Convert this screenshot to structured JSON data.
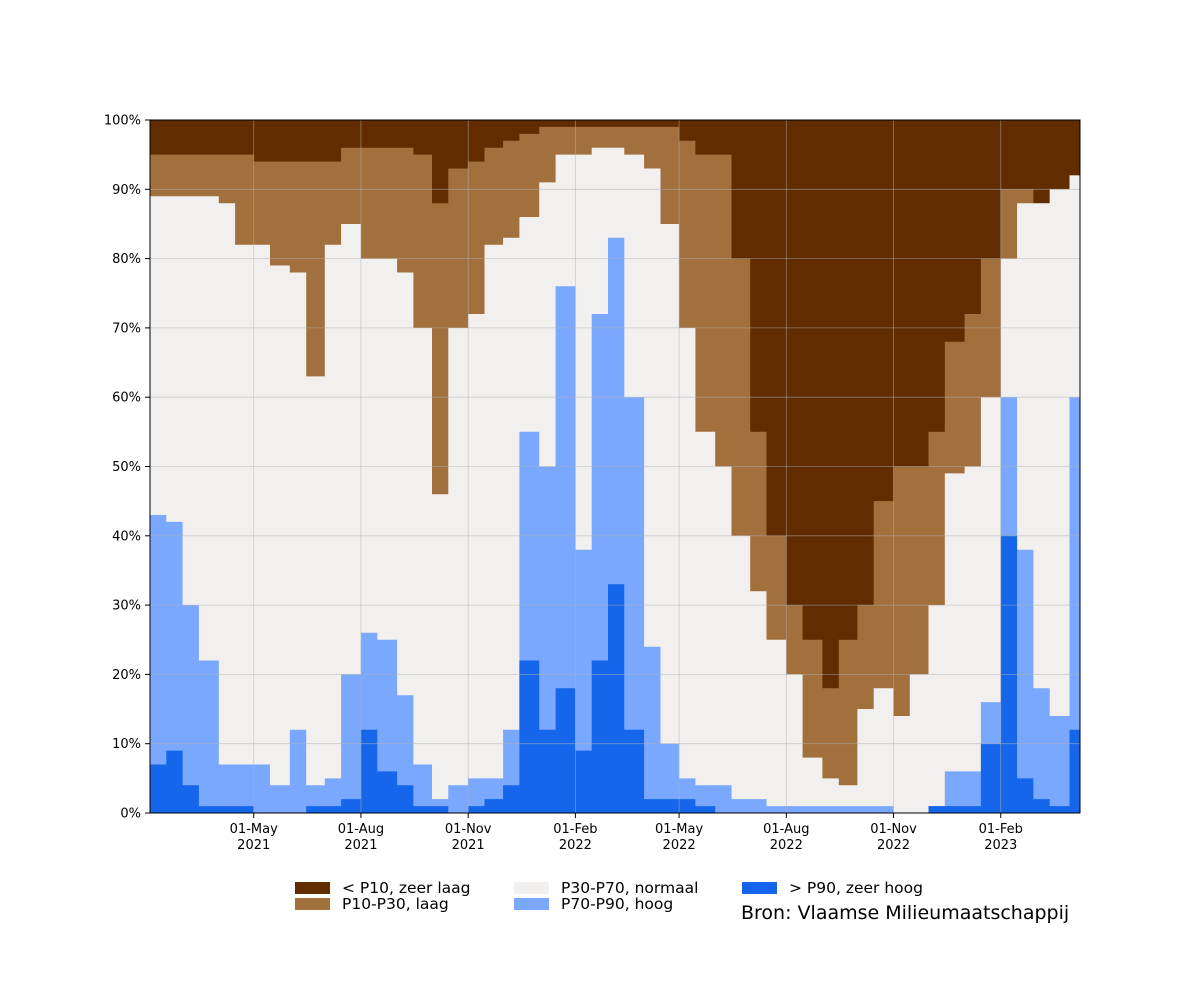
{
  "chart_data": {
    "type": "area",
    "stacked": true,
    "grid": true,
    "legend_position": "bottom",
    "y_unit": "%",
    "ylim": [
      0,
      100
    ],
    "yticks": [
      0,
      10,
      20,
      30,
      40,
      50,
      60,
      70,
      80,
      90,
      100
    ],
    "ytick_labels": [
      "0%",
      "10%",
      "20%",
      "30%",
      "40%",
      "50%",
      "60%",
      "70%",
      "80%",
      "90%",
      "100%"
    ],
    "xlim": [
      "2021-02-01",
      "2023-04-10"
    ],
    "xticks": [
      {
        "date": "2021-05-01",
        "label1": "01-May",
        "label2": "2021"
      },
      {
        "date": "2021-08-01",
        "label1": "01-Aug",
        "label2": "2021"
      },
      {
        "date": "2021-11-01",
        "label1": "01-Nov",
        "label2": "2021"
      },
      {
        "date": "2022-02-01",
        "label1": "01-Feb",
        "label2": "2022"
      },
      {
        "date": "2022-05-01",
        "label1": "01-May",
        "label2": "2022"
      },
      {
        "date": "2022-08-01",
        "label1": "01-Aug",
        "label2": "2022"
      },
      {
        "date": "2022-11-01",
        "label1": "01-Nov",
        "label2": "2022"
      },
      {
        "date": "2023-02-01",
        "label1": "01-Feb",
        "label2": "2023"
      }
    ],
    "x": [
      "2021-02-01",
      "2021-02-15",
      "2021-03-01",
      "2021-03-15",
      "2021-04-01",
      "2021-04-15",
      "2021-05-01",
      "2021-05-15",
      "2021-06-01",
      "2021-06-15",
      "2021-07-01",
      "2021-07-15",
      "2021-08-01",
      "2021-08-15",
      "2021-09-01",
      "2021-09-15",
      "2021-10-01",
      "2021-10-15",
      "2021-11-01",
      "2021-11-15",
      "2021-12-01",
      "2021-12-15",
      "2022-01-01",
      "2022-01-15",
      "2022-02-01",
      "2022-02-15",
      "2022-03-01",
      "2022-03-15",
      "2022-04-01",
      "2022-04-15",
      "2022-05-01",
      "2022-05-15",
      "2022-06-01",
      "2022-06-15",
      "2022-07-01",
      "2022-07-15",
      "2022-08-01",
      "2022-08-15",
      "2022-09-01",
      "2022-09-15",
      "2022-10-01",
      "2022-10-15",
      "2022-11-01",
      "2022-11-15",
      "2022-12-01",
      "2022-12-15",
      "2023-01-01",
      "2023-01-15",
      "2023-02-01",
      "2023-02-15",
      "2023-03-01",
      "2023-03-15",
      "2023-04-01",
      "2023-04-10"
    ],
    "series": [
      {
        "name": "> P90, zeer hoog",
        "color": "#1566eb",
        "values": [
          7,
          9,
          4,
          1,
          1,
          1,
          0,
          0,
          0,
          1,
          1,
          2,
          12,
          6,
          4,
          1,
          1,
          0,
          1,
          2,
          4,
          22,
          12,
          18,
          9,
          22,
          33,
          12,
          2,
          2,
          2,
          1,
          0,
          0,
          0,
          0,
          0,
          0,
          0,
          0,
          0,
          0,
          0,
          0,
          1,
          1,
          1,
          10,
          40,
          5,
          2,
          1,
          12,
          25
        ]
      },
      {
        "name": "P70-P90, hoog",
        "color": "#7aa8ff",
        "values": [
          43,
          42,
          30,
          22,
          7,
          7,
          7,
          4,
          12,
          4,
          5,
          20,
          26,
          25,
          17,
          7,
          2,
          4,
          5,
          5,
          12,
          55,
          50,
          76,
          38,
          72,
          83,
          60,
          24,
          10,
          5,
          4,
          4,
          2,
          2,
          1,
          1,
          1,
          1,
          1,
          1,
          1,
          0,
          0,
          1,
          6,
          6,
          16,
          60,
          38,
          18,
          14,
          60,
          70
        ]
      },
      {
        "name": "P30-P70, normaal",
        "color": "#f2f0ef",
        "values": [
          89,
          89,
          89,
          89,
          88,
          82,
          82,
          79,
          78,
          63,
          82,
          85,
          80,
          80,
          78,
          70,
          46,
          70,
          72,
          82,
          83,
          86,
          91,
          95,
          95,
          96,
          96,
          95,
          93,
          85,
          70,
          55,
          50,
          40,
          32,
          25,
          20,
          8,
          5,
          4,
          15,
          18,
          14,
          20,
          30,
          49,
          50,
          60,
          80,
          88,
          88,
          90,
          92,
          94
        ]
      },
      {
        "name": "P10-P30, laag",
        "color": "#a2703c",
        "values": [
          95,
          95,
          95,
          95,
          95,
          95,
          94,
          94,
          94,
          94,
          94,
          96,
          96,
          96,
          96,
          95,
          88,
          93,
          94,
          96,
          97,
          98,
          99,
          99,
          99,
          99,
          99,
          99,
          99,
          99,
          97,
          95,
          95,
          80,
          55,
          40,
          30,
          25,
          18,
          25,
          30,
          45,
          50,
          50,
          55,
          68,
          72,
          80,
          90,
          90,
          88,
          90,
          92,
          96
        ]
      },
      {
        "name": "< P10, zeer laag",
        "color": "#602c00",
        "values": [
          100,
          100,
          100,
          100,
          100,
          100,
          100,
          100,
          100,
          100,
          100,
          100,
          100,
          100,
          100,
          100,
          100,
          100,
          100,
          100,
          100,
          100,
          100,
          100,
          100,
          100,
          100,
          100,
          100,
          100,
          100,
          100,
          100,
          100,
          100,
          100,
          100,
          100,
          100,
          100,
          100,
          100,
          100,
          100,
          100,
          100,
          100,
          100,
          100,
          100,
          100,
          100,
          100,
          100
        ]
      }
    ],
    "value_semantics": "cumulative top edge (%) of each stacked band",
    "source": "Bron: Vlaamse Milieumaatschappij"
  }
}
